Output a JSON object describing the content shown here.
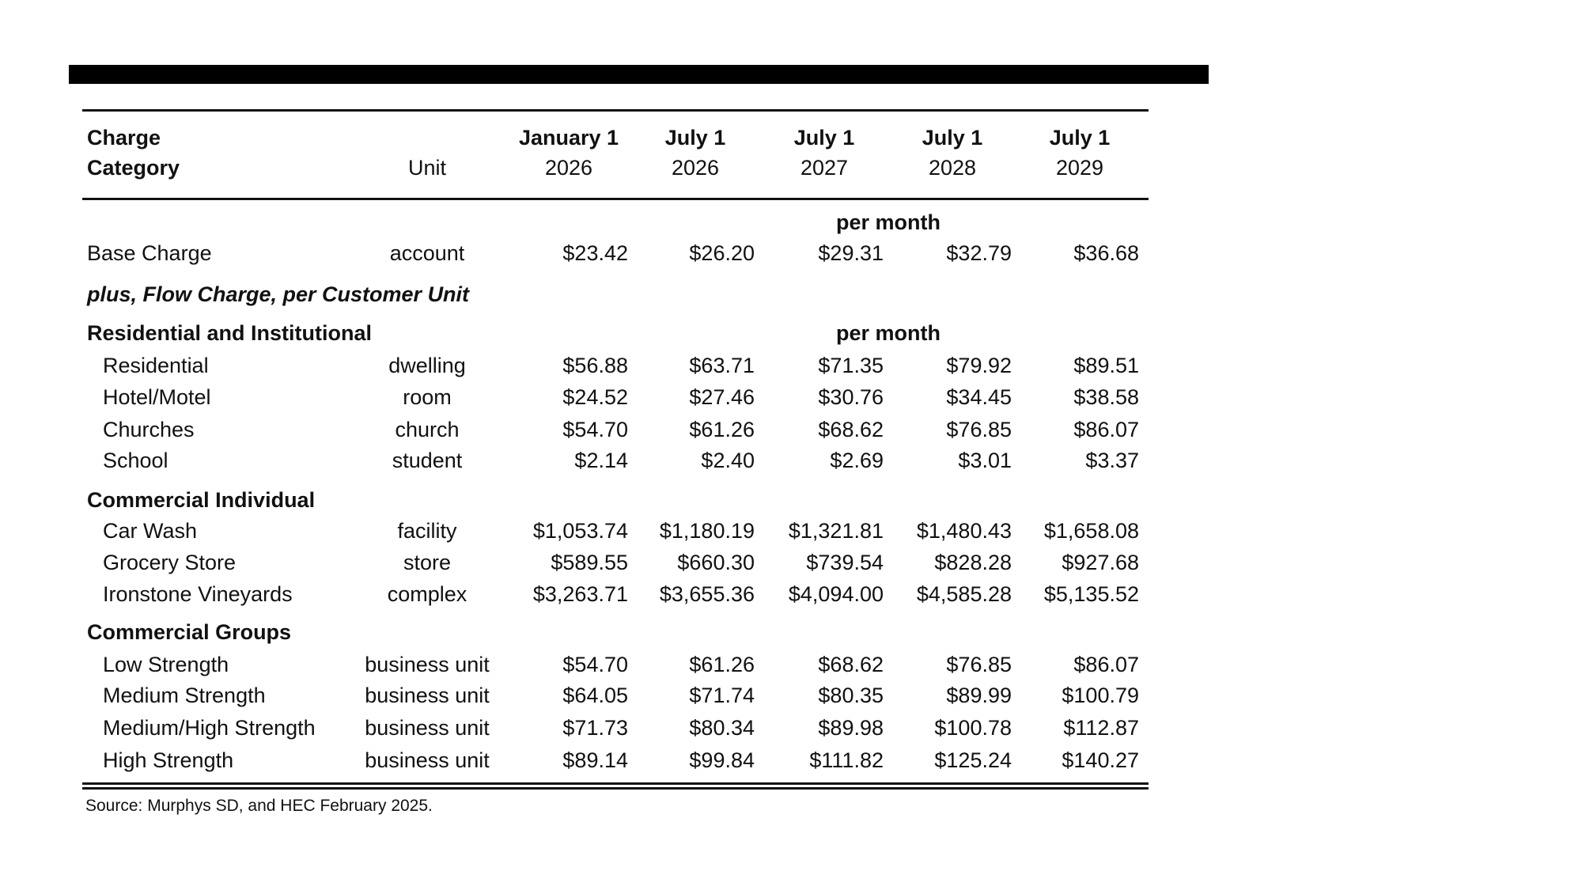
{
  "header": {
    "col_category_line1": "Charge",
    "col_category_line2": "Category",
    "col_unit": "Unit",
    "dates": [
      {
        "label": "January 1",
        "year": "2026"
      },
      {
        "label": "July 1",
        "year": "2026"
      },
      {
        "label": "July 1",
        "year": "2027"
      },
      {
        "label": "July 1",
        "year": "2028"
      },
      {
        "label": "July 1",
        "year": "2029"
      }
    ]
  },
  "per_month_label": "per month",
  "base": {
    "label": "Base Charge",
    "unit": "account",
    "values": [
      "$23.42",
      "$26.20",
      "$29.31",
      "$32.79",
      "$36.68"
    ]
  },
  "flow_charge_label": "plus, Flow Charge, per Customer Unit",
  "groups": [
    {
      "title": "Residential and Institutional",
      "rows": [
        {
          "label": "Residential",
          "unit": "dwelling",
          "values": [
            "$56.88",
            "$63.71",
            "$71.35",
            "$79.92",
            "$89.51"
          ]
        },
        {
          "label": "Hotel/Motel",
          "unit": "room",
          "values": [
            "$24.52",
            "$27.46",
            "$30.76",
            "$34.45",
            "$38.58"
          ]
        },
        {
          "label": "Churches",
          "unit": "church",
          "values": [
            "$54.70",
            "$61.26",
            "$68.62",
            "$76.85",
            "$86.07"
          ]
        },
        {
          "label": "School",
          "unit": "student",
          "values": [
            "$2.14",
            "$2.40",
            "$2.69",
            "$3.01",
            "$3.37"
          ]
        }
      ]
    },
    {
      "title": "Commercial Individual",
      "rows": [
        {
          "label": "Car Wash",
          "unit": "facility",
          "values": [
            "$1,053.74",
            "$1,180.19",
            "$1,321.81",
            "$1,480.43",
            "$1,658.08"
          ]
        },
        {
          "label": "Grocery Store",
          "unit": "store",
          "values": [
            "$589.55",
            "$660.30",
            "$739.54",
            "$828.28",
            "$927.68"
          ]
        },
        {
          "label": "Ironstone Vineyards",
          "unit": "complex",
          "values": [
            "$3,263.71",
            "$3,655.36",
            "$4,094.00",
            "$4,585.28",
            "$5,135.52"
          ]
        }
      ]
    },
    {
      "title": "Commercial Groups",
      "rows": [
        {
          "label": "Low Strength",
          "unit": "business unit",
          "values": [
            "$54.70",
            "$61.26",
            "$68.62",
            "$76.85",
            "$86.07"
          ]
        },
        {
          "label": "Medium Strength",
          "unit": "business unit",
          "values": [
            "$64.05",
            "$71.74",
            "$80.35",
            "$89.99",
            "$100.79"
          ]
        },
        {
          "label": "Medium/High Strength",
          "unit": "business unit",
          "values": [
            "$71.73",
            "$80.34",
            "$89.98",
            "$100.78",
            "$112.87"
          ]
        },
        {
          "label": "High Strength",
          "unit": "business unit",
          "values": [
            "$89.14",
            "$99.84",
            "$111.82",
            "$125.24",
            "$140.27"
          ]
        }
      ]
    }
  ],
  "source": "Source: Murphys SD, and HEC February 2025."
}
